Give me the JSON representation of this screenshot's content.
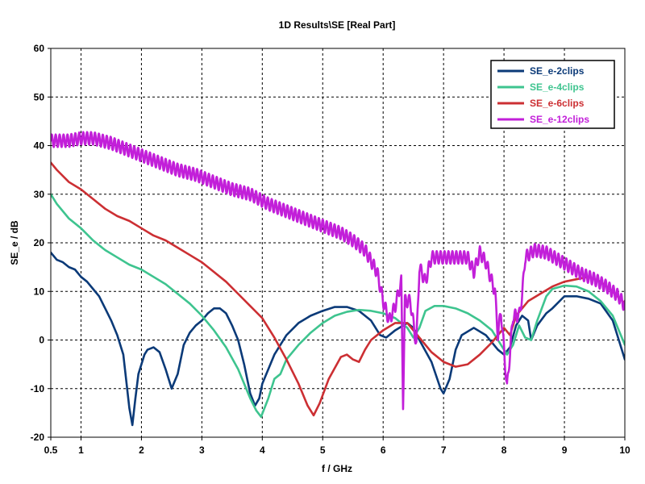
{
  "chart_data": {
    "type": "line",
    "title": "1D Results\\SE [Real Part]",
    "xlabel": "f / GHz",
    "ylabel": "SE_e / dB",
    "xlim": [
      0.5,
      10
    ],
    "ylim": [
      -20,
      60
    ],
    "x_ticks": [
      0.5,
      1,
      2,
      3,
      4,
      5,
      6,
      7,
      8,
      9,
      10
    ],
    "y_ticks": [
      -20,
      -10,
      0,
      10,
      20,
      30,
      40,
      50,
      60
    ],
    "grid": true,
    "legend_position": "top-right",
    "series": [
      {
        "name": "SE_e-2clips",
        "color": "#0b3a78",
        "points": [
          [
            0.5,
            18
          ],
          [
            0.6,
            16.5
          ],
          [
            0.7,
            16
          ],
          [
            0.8,
            15
          ],
          [
            0.9,
            14.5
          ],
          [
            1.0,
            13
          ],
          [
            1.1,
            12
          ],
          [
            1.2,
            10.5
          ],
          [
            1.3,
            9
          ],
          [
            1.4,
            6.5
          ],
          [
            1.5,
            4
          ],
          [
            1.6,
            1
          ],
          [
            1.7,
            -3
          ],
          [
            1.8,
            -14
          ],
          [
            1.85,
            -17.5
          ],
          [
            1.9,
            -12
          ],
          [
            1.95,
            -7
          ],
          [
            2.0,
            -5
          ],
          [
            2.05,
            -3
          ],
          [
            2.1,
            -2
          ],
          [
            2.2,
            -1.5
          ],
          [
            2.3,
            -2.5
          ],
          [
            2.4,
            -6
          ],
          [
            2.5,
            -10
          ],
          [
            2.6,
            -7
          ],
          [
            2.7,
            -1
          ],
          [
            2.8,
            1.5
          ],
          [
            2.9,
            3
          ],
          [
            3.0,
            4
          ],
          [
            3.1,
            5.5
          ],
          [
            3.2,
            6.5
          ],
          [
            3.3,
            6.5
          ],
          [
            3.4,
            5.5
          ],
          [
            3.5,
            3
          ],
          [
            3.6,
            0
          ],
          [
            3.7,
            -5
          ],
          [
            3.8,
            -11
          ],
          [
            3.88,
            -13.5
          ],
          [
            3.95,
            -12
          ],
          [
            4.0,
            -9
          ],
          [
            4.2,
            -3
          ],
          [
            4.4,
            1
          ],
          [
            4.6,
            3.5
          ],
          [
            4.8,
            5
          ],
          [
            5.0,
            6
          ],
          [
            5.2,
            6.8
          ],
          [
            5.4,
            6.8
          ],
          [
            5.6,
            6
          ],
          [
            5.8,
            4
          ],
          [
            5.95,
            1
          ],
          [
            6.05,
            0.5
          ],
          [
            6.2,
            2
          ],
          [
            6.4,
            3.5
          ],
          [
            6.5,
            2.5
          ],
          [
            6.6,
            0
          ],
          [
            6.8,
            -4.5
          ],
          [
            6.95,
            -10
          ],
          [
            7.0,
            -11
          ],
          [
            7.1,
            -8
          ],
          [
            7.2,
            -2
          ],
          [
            7.3,
            1
          ],
          [
            7.5,
            2.5
          ],
          [
            7.7,
            1
          ],
          [
            7.9,
            -2
          ],
          [
            8.0,
            -3
          ],
          [
            8.1,
            -1.5
          ],
          [
            8.2,
            3
          ],
          [
            8.3,
            5
          ],
          [
            8.4,
            4
          ],
          [
            8.45,
            0
          ],
          [
            8.55,
            3
          ],
          [
            8.7,
            5.5
          ],
          [
            8.8,
            6.5
          ],
          [
            9.0,
            9
          ],
          [
            9.2,
            9
          ],
          [
            9.4,
            8.5
          ],
          [
            9.6,
            7.5
          ],
          [
            9.8,
            4
          ],
          [
            9.9,
            0
          ],
          [
            10.0,
            -4
          ]
        ]
      },
      {
        "name": "SE_e-4clips",
        "color": "#3ec48f",
        "points": [
          [
            0.5,
            30
          ],
          [
            0.6,
            28
          ],
          [
            0.8,
            25
          ],
          [
            1.0,
            23
          ],
          [
            1.2,
            20.5
          ],
          [
            1.4,
            18.5
          ],
          [
            1.6,
            17
          ],
          [
            1.8,
            15.5
          ],
          [
            2.0,
            14.5
          ],
          [
            2.2,
            13
          ],
          [
            2.4,
            11.5
          ],
          [
            2.6,
            9.5
          ],
          [
            2.8,
            7.5
          ],
          [
            3.0,
            5
          ],
          [
            3.2,
            2
          ],
          [
            3.4,
            -1.5
          ],
          [
            3.6,
            -6
          ],
          [
            3.8,
            -12
          ],
          [
            3.9,
            -14.5
          ],
          [
            3.98,
            -15.8
          ],
          [
            4.1,
            -12
          ],
          [
            4.2,
            -8
          ],
          [
            4.3,
            -7
          ],
          [
            4.4,
            -4
          ],
          [
            4.6,
            -1
          ],
          [
            4.8,
            1.5
          ],
          [
            5.0,
            3.5
          ],
          [
            5.2,
            5
          ],
          [
            5.4,
            5.8
          ],
          [
            5.6,
            6.2
          ],
          [
            5.8,
            6
          ],
          [
            6.0,
            5.5
          ],
          [
            6.2,
            4.5
          ],
          [
            6.4,
            2.5
          ],
          [
            6.5,
            0.5
          ],
          [
            6.6,
            2.5
          ],
          [
            6.7,
            6
          ],
          [
            6.85,
            7
          ],
          [
            7.0,
            7
          ],
          [
            7.2,
            6.5
          ],
          [
            7.4,
            5.5
          ],
          [
            7.6,
            4
          ],
          [
            7.8,
            2
          ],
          [
            7.9,
            0
          ],
          [
            8.0,
            -2
          ],
          [
            8.05,
            -3
          ],
          [
            8.15,
            -1
          ],
          [
            8.25,
            3
          ],
          [
            8.35,
            0.5
          ],
          [
            8.45,
            0
          ],
          [
            8.55,
            4
          ],
          [
            8.7,
            9
          ],
          [
            8.8,
            10.5
          ],
          [
            9.0,
            11.2
          ],
          [
            9.2,
            11
          ],
          [
            9.4,
            10
          ],
          [
            9.6,
            8
          ],
          [
            9.8,
            5
          ],
          [
            10.0,
            -1
          ]
        ]
      },
      {
        "name": "SE_e-6clips",
        "color": "#cc2f33",
        "points": [
          [
            0.5,
            36.5
          ],
          [
            0.6,
            35
          ],
          [
            0.8,
            32.5
          ],
          [
            1.0,
            31
          ],
          [
            1.2,
            29
          ],
          [
            1.4,
            27
          ],
          [
            1.6,
            25.5
          ],
          [
            1.8,
            24.5
          ],
          [
            2.0,
            23
          ],
          [
            2.2,
            21.5
          ],
          [
            2.4,
            20.5
          ],
          [
            2.6,
            19
          ],
          [
            2.8,
            17.5
          ],
          [
            3.0,
            16
          ],
          [
            3.2,
            14
          ],
          [
            3.4,
            12
          ],
          [
            3.6,
            9.5
          ],
          [
            3.8,
            7
          ],
          [
            4.0,
            4.5
          ],
          [
            4.2,
            0.5
          ],
          [
            4.4,
            -4
          ],
          [
            4.6,
            -9
          ],
          [
            4.75,
            -13.5
          ],
          [
            4.85,
            -15.5
          ],
          [
            4.95,
            -13
          ],
          [
            5.1,
            -8
          ],
          [
            5.3,
            -3.5
          ],
          [
            5.4,
            -3
          ],
          [
            5.5,
            -4
          ],
          [
            5.6,
            -4.5
          ],
          [
            5.7,
            -2
          ],
          [
            5.8,
            0
          ],
          [
            6.0,
            2
          ],
          [
            6.2,
            3.5
          ],
          [
            6.4,
            3.5
          ],
          [
            6.6,
            0.5
          ],
          [
            6.8,
            -2.5
          ],
          [
            7.0,
            -4.5
          ],
          [
            7.2,
            -5.5
          ],
          [
            7.4,
            -5
          ],
          [
            7.6,
            -3
          ],
          [
            7.8,
            -0.5
          ],
          [
            8.0,
            2.5
          ],
          [
            8.1,
            1
          ],
          [
            8.2,
            5
          ],
          [
            8.4,
            8
          ],
          [
            8.6,
            9.5
          ],
          [
            8.8,
            11
          ],
          [
            9.0,
            12
          ],
          [
            9.2,
            12.5
          ],
          [
            9.4,
            13
          ],
          [
            9.6,
            12
          ],
          [
            9.8,
            10
          ],
          [
            10.0,
            7.5
          ]
        ]
      },
      {
        "name": "SE_e-12clips",
        "color": "#c21fd9",
        "oscillation_amplitude_db": 1.3,
        "oscillation_period_ghz": 0.065,
        "points": [
          [
            0.5,
            41
          ],
          [
            0.8,
            41
          ],
          [
            1.0,
            41.5
          ],
          [
            1.2,
            41.5
          ],
          [
            1.5,
            40.5
          ],
          [
            1.8,
            39
          ],
          [
            2.0,
            38
          ],
          [
            2.3,
            36.5
          ],
          [
            2.6,
            35
          ],
          [
            2.9,
            34
          ],
          [
            3.2,
            32.5
          ],
          [
            3.5,
            31
          ],
          [
            3.8,
            30
          ],
          [
            4.1,
            28
          ],
          [
            4.4,
            26.5
          ],
          [
            4.7,
            25
          ],
          [
            5.0,
            23.5
          ],
          [
            5.3,
            22
          ],
          [
            5.5,
            20.5
          ],
          [
            5.7,
            18.5
          ],
          [
            5.9,
            14
          ],
          [
            6.0,
            8
          ],
          [
            6.1,
            4
          ],
          [
            6.2,
            7
          ],
          [
            6.3,
            12
          ],
          [
            6.33,
            -13
          ],
          [
            6.36,
            8
          ],
          [
            6.45,
            8
          ],
          [
            6.55,
            -1
          ],
          [
            6.6,
            15
          ],
          [
            6.7,
            12
          ],
          [
            6.8,
            17
          ],
          [
            7.0,
            17
          ],
          [
            7.2,
            17
          ],
          [
            7.4,
            17
          ],
          [
            7.5,
            14
          ],
          [
            7.6,
            18
          ],
          [
            7.7,
            16
          ],
          [
            7.85,
            10
          ],
          [
            7.9,
            1
          ],
          [
            7.95,
            6
          ],
          [
            8.05,
            -10
          ],
          [
            8.15,
            5
          ],
          [
            8.25,
            5
          ],
          [
            8.3,
            9
          ],
          [
            8.35,
            17
          ],
          [
            8.5,
            18.5
          ],
          [
            8.7,
            18
          ],
          [
            8.9,
            16.5
          ],
          [
            9.1,
            15
          ],
          [
            9.3,
            13.5
          ],
          [
            9.5,
            12.5
          ],
          [
            9.7,
            11
          ],
          [
            9.9,
            9
          ],
          [
            10.0,
            7
          ]
        ]
      }
    ]
  }
}
